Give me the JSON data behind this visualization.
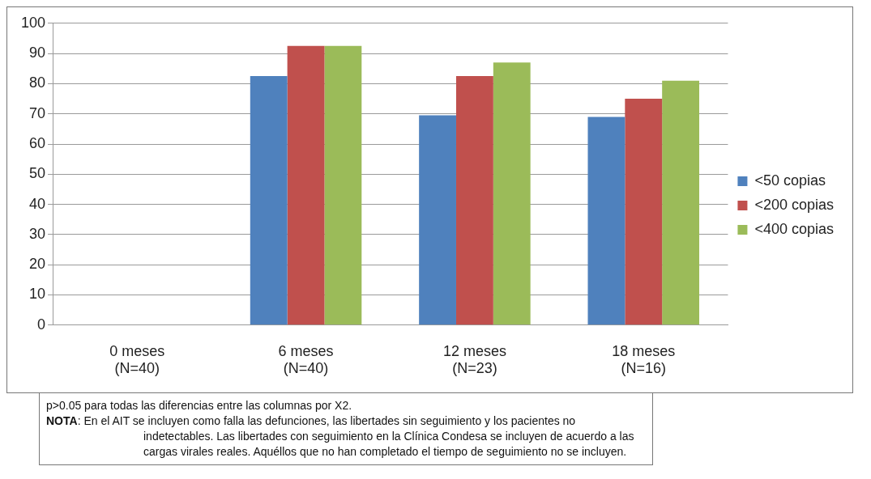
{
  "chart_data": {
    "type": "bar",
    "categories": [
      "0 meses\n(N=40)",
      "6 meses\n(N=40)",
      "12 meses\n(N=23)",
      "18 meses\n(N=16)"
    ],
    "series": [
      {
        "name": "<50 copias",
        "color": "#4f81bd",
        "values": [
          null,
          82.5,
          69.5,
          69
        ]
      },
      {
        "name": "<200 copias",
        "color": "#c0504d",
        "values": [
          null,
          92.5,
          82.5,
          75
        ]
      },
      {
        "name": "<400 copias",
        "color": "#9bbb59",
        "values": [
          null,
          92.5,
          87,
          81
        ]
      }
    ],
    "ylim": [
      0,
      100
    ],
    "yticks": [
      0,
      10,
      20,
      30,
      40,
      50,
      60,
      70,
      80,
      90,
      100
    ],
    "grid": "y",
    "legend": "right",
    "annotations": [
      "p>0.05 para todas las diferencias entre las columnas por X2.",
      "NOTA: En el AIT se incluyen como falla las defunciones, las libertades sin seguimiento y los pacientes no indetectables. Las libertades con seguimiento en la Clínica Condesa se incluyen de acuerdo a las cargas virales reales. Aquéllos que no han completado el tiempo de seguimiento no se incluyen."
    ]
  }
}
